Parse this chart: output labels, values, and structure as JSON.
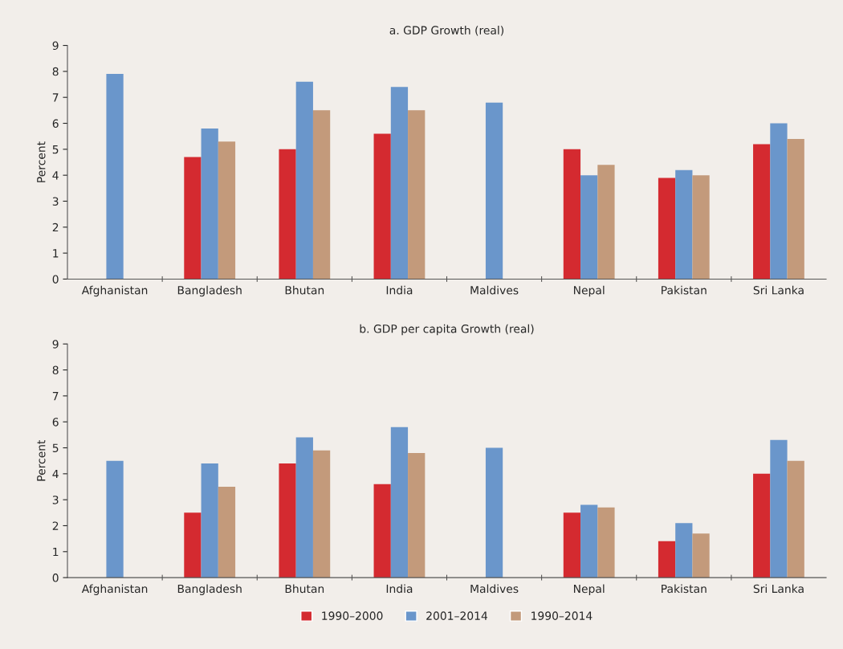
{
  "chart_data": [
    {
      "type": "bar",
      "title": "a. GDP Growth (real)",
      "ylabel": "Percent",
      "categories": [
        "Afghanistan",
        "Bangladesh",
        "Bhutan",
        "India",
        "Maldives",
        "Nepal",
        "Pakistan",
        "Sri Lanka"
      ],
      "series": [
        {
          "color": "#d42a30",
          "values": [
            null,
            4.7,
            5.0,
            5.6,
            null,
            5.0,
            3.9,
            5.2
          ]
        },
        {
          "color": "#6a96cb",
          "values": [
            7.9,
            5.8,
            7.6,
            7.4,
            6.8,
            4.0,
            4.2,
            6.0
          ]
        },
        {
          "color": "#c39a7b",
          "values": [
            null,
            5.3,
            6.5,
            6.5,
            null,
            4.4,
            4.0,
            5.4
          ]
        }
      ],
      "ylim": [
        0,
        9
      ],
      "yticks": [
        0,
        1,
        2,
        3,
        4,
        5,
        6,
        7,
        8,
        9
      ],
      "grid": false,
      "legend": false
    },
    {
      "type": "bar",
      "title": "b. GDP per capita Growth (real)",
      "ylabel": "Percent",
      "categories": [
        "Afghanistan",
        "Bangladesh",
        "Bhutan",
        "India",
        "Maldives",
        "Nepal",
        "Pakistan",
        "Sri Lanka"
      ],
      "series": [
        {
          "name": "1990–2000",
          "color": "#d42a30",
          "values": [
            null,
            2.5,
            4.4,
            3.6,
            null,
            2.5,
            1.4,
            4.0
          ]
        },
        {
          "name": "2001–2014",
          "color": "#6a96cb",
          "values": [
            4.5,
            4.4,
            5.4,
            5.8,
            5.0,
            2.8,
            2.1,
            5.3
          ]
        },
        {
          "name": "1990–2014",
          "color": "#c39a7b",
          "values": [
            null,
            3.5,
            4.9,
            4.8,
            null,
            2.7,
            1.7,
            4.5
          ]
        }
      ],
      "ylim": [
        0,
        9
      ],
      "yticks": [
        0,
        1,
        2,
        3,
        4,
        5,
        6,
        7,
        8,
        9
      ],
      "grid": false,
      "legend": "bottom"
    }
  ]
}
